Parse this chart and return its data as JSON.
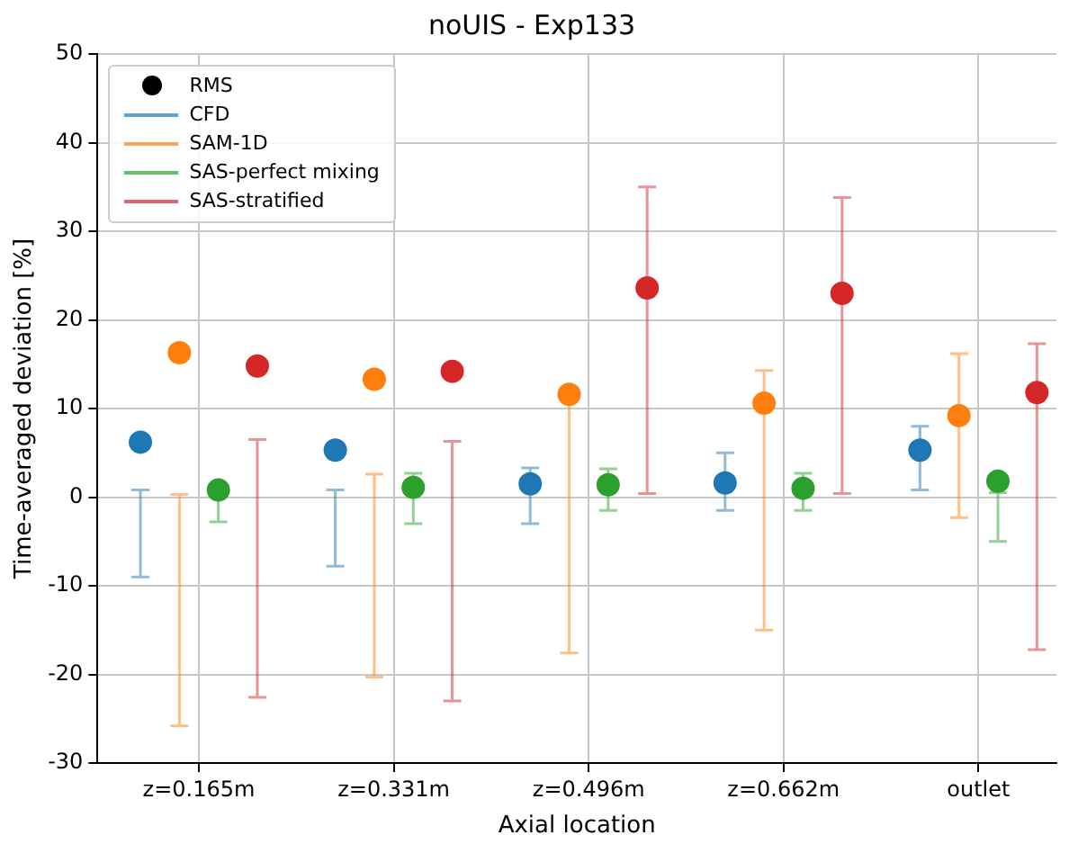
{
  "chart_data": {
    "type": "scatter",
    "title": "noUIS - Exp133",
    "xlabel": "Axial location",
    "ylabel": "Time-averaged deviation [%]",
    "categories": [
      "z=0.165m",
      "z=0.331m",
      "z=0.496m",
      "z=0.662m",
      "outlet"
    ],
    "legend_title": "RMS",
    "series": [
      {
        "name": "CFD",
        "color": "#1f77b4",
        "values": [
          6.2,
          5.3,
          1.5,
          1.6,
          5.3
        ],
        "errors": [
          [
            -9,
            0.8
          ],
          [
            -7.8,
            0.8
          ],
          [
            -3,
            3.3
          ],
          [
            -1.5,
            5
          ],
          [
            0.8,
            8
          ]
        ]
      },
      {
        "name": "SAM-1D",
        "color": "#ff7f0e",
        "values": [
          16.3,
          13.3,
          11.6,
          10.6,
          9.2
        ],
        "errors": [
          [
            -25.8,
            0.3
          ],
          [
            -20.3,
            2.6
          ],
          [
            -17.6,
            11
          ],
          [
            -15,
            14.3
          ],
          [
            -2.3,
            16.2
          ]
        ]
      },
      {
        "name": "SAS-perfect mixing",
        "color": "#2ca02c",
        "values": [
          0.8,
          1.1,
          1.4,
          1.0,
          1.8
        ],
        "errors": [
          [
            -2.8,
            0.8
          ],
          [
            -3,
            2.7
          ],
          [
            -1.5,
            3.2
          ],
          [
            -1.5,
            2.7
          ],
          [
            -5,
            0.5
          ]
        ]
      },
      {
        "name": "SAS-stratified",
        "color": "#d62728",
        "values": [
          14.8,
          14.2,
          23.6,
          23.0,
          11.8
        ],
        "errors": [
          [
            -22.6,
            6.5
          ],
          [
            -23,
            6.3
          ],
          [
            0.4,
            35
          ],
          [
            0.4,
            33.8
          ],
          [
            -17.2,
            17.3
          ]
        ]
      }
    ],
    "ylim": [
      -30,
      50
    ],
    "yticks": [
      -30,
      -20,
      -10,
      0,
      10,
      20,
      30,
      40,
      50
    ],
    "grid": true,
    "legend": "top left",
    "marker": "circle"
  }
}
